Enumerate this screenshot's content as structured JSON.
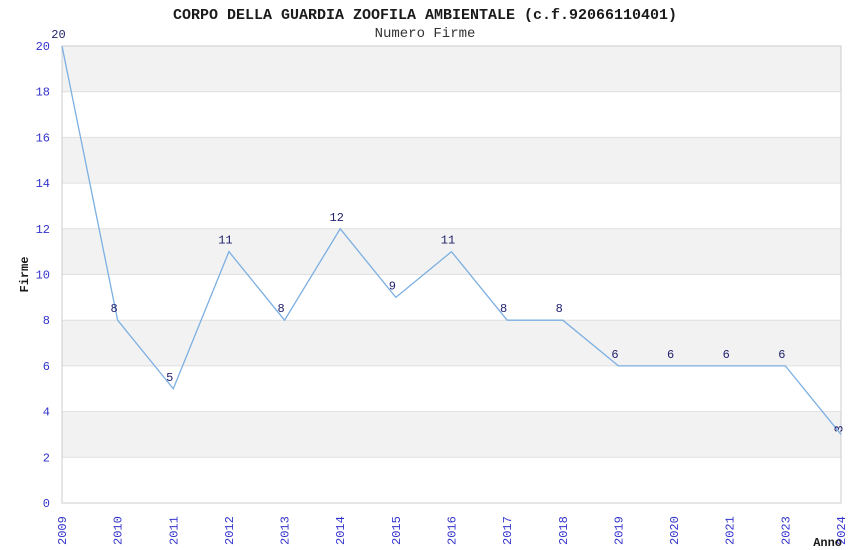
{
  "chart_data": {
    "type": "line",
    "title": "CORPO DELLA GUARDIA ZOOFILA AMBIENTALE (c.f.92066110401)",
    "subtitle": "Numero Firme",
    "xlabel": "Anno",
    "ylabel": "Firme",
    "categories": [
      "2009",
      "2010",
      "2011",
      "2012",
      "2013",
      "2014",
      "2015",
      "2016",
      "2017",
      "2018",
      "2019",
      "2020",
      "2021",
      "2023",
      "2024"
    ],
    "series": [
      {
        "name": "Numero Firme",
        "values": [
          20,
          8,
          5,
          11,
          8,
          12,
          9,
          11,
          8,
          8,
          6,
          6,
          6,
          6,
          3
        ]
      }
    ],
    "ylim": [
      0,
      20
    ],
    "ytick_step": 2,
    "grid": "horizontal",
    "legend_position": "none",
    "band_fill": "alternating-horizontal",
    "data_labels_visible": true,
    "last_data_label_rotated": true,
    "x_tick_rotation_deg": -90,
    "colors": {
      "line": "#7cafe2",
      "tick_label": "#3232cd",
      "data_label": "#22226e",
      "band_gray": "#f2f2f2",
      "grid_line": "#e0e0e0",
      "plot_border": "#cccccc",
      "title": "#1a1a1a",
      "subtitle": "#333333",
      "axis_title": "#1a1a1a",
      "background": "#ffffff"
    }
  }
}
